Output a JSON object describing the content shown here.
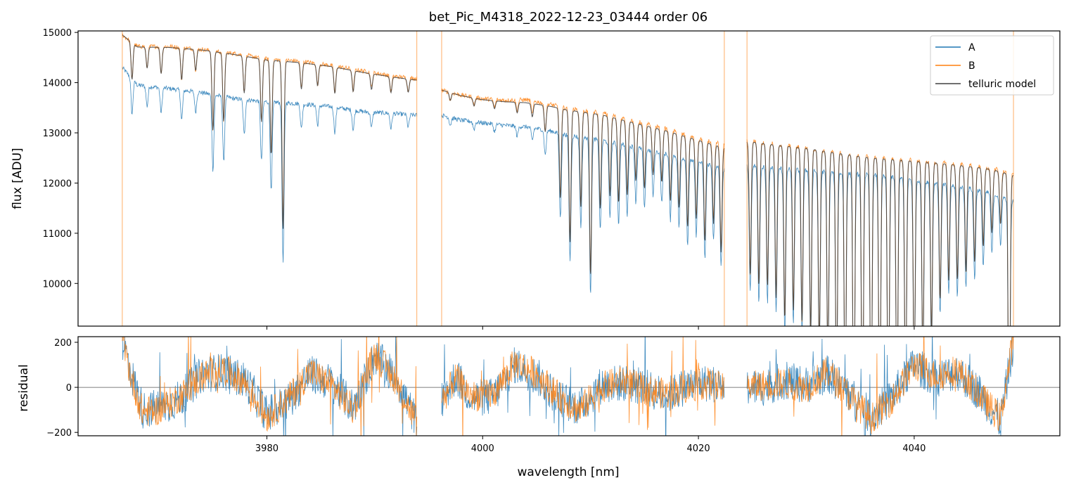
{
  "chart_data": {
    "type": "line",
    "title": "bet_Pic_M4318_2022-12-23_03444  order 06",
    "xlabel": "wavelength [nm]",
    "xlim": [
      3962.5,
      4053.5
    ],
    "x_ticks": [
      "3980",
      "4000",
      "4020",
      "4040"
    ],
    "x_tick_values": [
      3980,
      4000,
      4020,
      4040
    ],
    "legend_position": "top-right",
    "colors": {
      "A": "#1f77b4",
      "B": "#ff7f0e",
      "telluric model": "#404040",
      "zero line": "#555555"
    },
    "panels": [
      {
        "name": "flux",
        "ylabel": "flux [ADU]",
        "ylim": [
          9150,
          15030
        ],
        "y_ticks": [
          "10000",
          "11000",
          "12000",
          "13000",
          "14000",
          "15000"
        ],
        "y_tick_values": [
          10000,
          11000,
          12000,
          13000,
          14000,
          15000
        ],
        "segments": [
          {
            "x": [
              3966.6,
              3968,
              3971,
              3974,
              3977,
              3980,
              3983,
              3986,
              3989,
              3992,
              3993.9
            ],
            "series": {
              "A": [
                14300,
                13950,
                13880,
                13800,
                13680,
                13620,
                13580,
                13520,
                13420,
                13380,
                13350
              ],
              "B": [
                14950,
                14720,
                14720,
                14660,
                14580,
                14470,
                14430,
                14340,
                14230,
                14120,
                14080
              ],
              "telluric model": [
                14950,
                14710,
                14700,
                14650,
                14560,
                14450,
                14400,
                14320,
                14200,
                14100,
                14050
              ]
            },
            "lines_x": [
              3967.5,
              3968.9,
              3970.2,
              3972.1,
              3973.4,
              3975.0,
              3976.0,
              3977.9,
              3979.5,
              3980.4,
              3981.5,
              3983.2,
              3984.7,
              3986.3,
              3988.0,
              3989.7,
              3991.5,
              3993.1
            ],
            "lines_depth_A": [
              700,
              400,
              500,
              600,
              400,
              1500,
              1300,
              700,
              1200,
              1800,
              3200,
              500,
              400,
              500,
              400,
              300,
              300,
              250
            ]
          },
          {
            "x": [
              3996.2,
              3998,
              4000,
              4002,
              4004,
              4006,
              4008,
              4011,
              4014,
              4017,
              4020,
              4022.4
            ],
            "series": {
              "A": [
                13350,
                13250,
                13200,
                13150,
                13120,
                13050,
                12950,
                12850,
                12720,
                12580,
                12420,
                12300
              ],
              "B": [
                13850,
                13750,
                13680,
                13650,
                13660,
                13580,
                13480,
                13400,
                13240,
                13080,
                12880,
                12780
              ],
              "telluric model": [
                13850,
                13740,
                13660,
                13620,
                13600,
                13540,
                13450,
                13360,
                13200,
                13040,
                12850,
                12700
              ]
            },
            "lines_x": [
              3997.0,
              3999.2,
              4001.1,
              4003.2,
              4004.6,
              4005.8,
              4007.2,
              4008.1,
              4009.1,
              4010.0,
              4010.9,
              4011.8,
              4012.6,
              4013.4,
              4014.2,
              4015.0,
              4015.8,
              4016.6,
              4017.4,
              4018.2,
              4019.0,
              4019.8,
              4020.6,
              4021.4,
              4022.1
            ],
            "lines_depth_A": [
              150,
              150,
              150,
              200,
              250,
              500,
              1700,
              2500,
              1800,
              3100,
              1800,
              1500,
              1600,
              1400,
              1100,
              1200,
              900,
              1000,
              1300,
              1400,
              1700,
              1500,
              1900,
              1500,
              2000
            ]
          },
          {
            "x": [
              4024.5,
              4027,
              4030,
              4033,
              4036,
              4039,
              4042,
              4045,
              4047,
              4049.2
            ],
            "series": {
              "A": [
                12350,
                12300,
                12250,
                12200,
                12160,
                12100,
                12000,
                11900,
                11800,
                11650
              ],
              "B": [
                12850,
                12780,
                12700,
                12600,
                12520,
                12470,
                12420,
                12350,
                12300,
                12200
              ],
              "telluric model": [
                12830,
                12760,
                12690,
                12590,
                12500,
                12450,
                12400,
                12330,
                12280,
                12150
              ]
            },
            "lines_x": [
              4024.8,
              4025.6,
              4026.4,
              4027.2,
              4028.0,
              4028.8,
              4029.6,
              4030.4,
              4031.2,
              4032.0,
              4032.8,
              4033.6,
              4034.4,
              4035.2,
              4036.0,
              4036.8,
              4037.6,
              4038.4,
              4039.2,
              4040.0,
              4040.8,
              4041.6,
              4042.4,
              4043.2,
              4044.0,
              4044.8,
              4045.6,
              4046.4,
              4047.2,
              4048.0,
              4048.8
            ],
            "lines_depth_A": [
              2500,
              2700,
              2700,
              2900,
              3300,
              3100,
              3300,
              3500,
              3700,
              4000,
              4500,
              5000,
              5500,
              5500,
              5500,
              5500,
              5500,
              5000,
              4800,
              4200,
              3800,
              3300,
              2600,
              2200,
              2200,
              2000,
              1800,
              1500,
              1200,
              1000,
              5500
            ]
          }
        ]
      },
      {
        "name": "residual",
        "ylabel": "residual",
        "ylim": [
          -215,
          225
        ],
        "y_ticks": [
          "200",
          "0",
          "−200"
        ],
        "y_tick_values": [
          200,
          0,
          -200
        ],
        "zero_line": 0,
        "segments": [
          {
            "x": [
              3966.6,
              3967.5,
              3968.5,
              3970,
              3972,
              3974,
              3976,
              3978,
              3980,
              3982,
              3984,
              3986,
              3988,
              3990,
              3992,
              3993.9
            ],
            "series": {
              "A": [
                220,
                50,
                -100,
                -90,
                -50,
                60,
                70,
                30,
                -120,
                -60,
                60,
                20,
                -90,
                140,
                40,
                -160
              ],
              "B": [
                220,
                30,
                -110,
                -100,
                -40,
                50,
                80,
                20,
                -130,
                -50,
                70,
                10,
                -100,
                150,
                30,
                -160
              ]
            }
          },
          {
            "x": [
              3996.2,
              3997.5,
              3999,
              4001,
              4003,
              4005,
              4007,
              4009,
              4011,
              4013,
              4015,
              4017,
              4019,
              4021,
              4022.4
            ],
            "series": {
              "A": [
                -60,
                50,
                -50,
                -40,
                100,
                50,
                -50,
                -90,
                10,
                20,
                0,
                -40,
                10,
                20,
                0
              ],
              "B": [
                -60,
                40,
                -40,
                -30,
                110,
                60,
                -40,
                -100,
                0,
                30,
                -10,
                -30,
                0,
                20,
                -10
              ]
            }
          },
          {
            "x": [
              4024.5,
              4026,
              4028,
              4030,
              4032,
              4034,
              4036,
              4038,
              4040,
              4042,
              4044,
              4046,
              4048,
              4049.2
            ],
            "series": {
              "A": [
                0,
                0,
                30,
                10,
                60,
                -30,
                -130,
                -40,
                100,
                40,
                70,
                -20,
                -150,
                200
              ],
              "B": [
                0,
                10,
                20,
                0,
                70,
                -40,
                -140,
                -50,
                100,
                50,
                80,
                -30,
                -140,
                220
              ]
            }
          }
        ]
      }
    ],
    "vertical_markers_x": [
      3966.6,
      3993.9,
      3996.2,
      4022.4,
      4024.5,
      4049.2
    ]
  }
}
